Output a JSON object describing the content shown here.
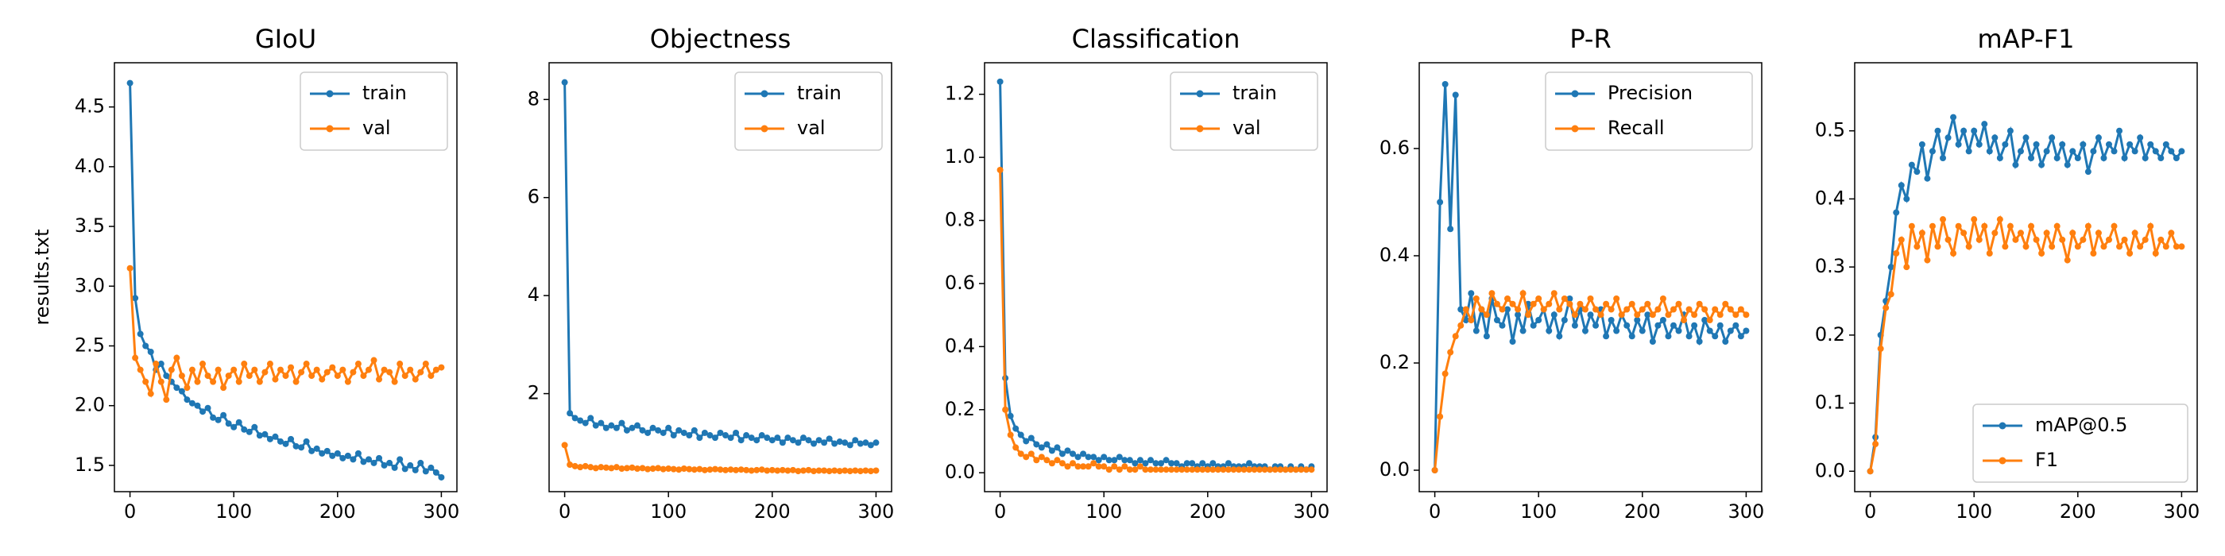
{
  "chart_data": [
    {
      "type": "line",
      "title": "GIoU",
      "y_label": "results.txt",
      "legend": "upper right",
      "x": [
        0,
        5,
        10,
        15,
        20,
        25,
        30,
        35,
        40,
        45,
        50,
        55,
        60,
        65,
        70,
        75,
        80,
        85,
        90,
        95,
        100,
        105,
        110,
        115,
        120,
        125,
        130,
        135,
        140,
        145,
        150,
        155,
        160,
        165,
        170,
        175,
        180,
        185,
        190,
        195,
        200,
        205,
        210,
        215,
        220,
        225,
        230,
        235,
        240,
        245,
        250,
        255,
        260,
        265,
        270,
        275,
        280,
        285,
        290,
        295,
        300
      ],
      "xlim": [
        -15,
        315
      ],
      "xticks": [
        0,
        100,
        200,
        300
      ],
      "ylim": [
        1.28,
        4.87
      ],
      "yticks": [
        1.5,
        {
          "value": 2.0,
          "label": "2.0"
        },
        2.5,
        {
          "value": 3.0,
          "label": "3.0"
        },
        3.5,
        {
          "value": 4.0,
          "label": "4.0"
        },
        4.5
      ],
      "series": [
        {
          "name": "train",
          "color": "#1f77b4",
          "values": [
            4.7,
            2.9,
            2.6,
            2.5,
            2.45,
            2.3,
            2.35,
            2.25,
            2.2,
            2.15,
            2.12,
            2.05,
            2.02,
            2.0,
            1.95,
            1.98,
            1.9,
            1.88,
            1.92,
            1.85,
            1.82,
            1.86,
            1.8,
            1.78,
            1.82,
            1.75,
            1.76,
            1.72,
            1.74,
            1.7,
            1.68,
            1.72,
            1.66,
            1.65,
            1.7,
            1.62,
            1.64,
            1.6,
            1.62,
            1.58,
            1.6,
            1.56,
            1.58,
            1.55,
            1.6,
            1.53,
            1.55,
            1.52,
            1.56,
            1.5,
            1.52,
            1.48,
            1.55,
            1.47,
            1.5,
            1.46,
            1.52,
            1.45,
            1.48,
            1.44,
            1.4
          ]
        },
        {
          "name": "val",
          "color": "#ff7f0e",
          "values": [
            3.15,
            2.4,
            2.3,
            2.2,
            2.1,
            2.35,
            2.2,
            2.05,
            2.3,
            2.4,
            2.25,
            2.15,
            2.3,
            2.2,
            2.35,
            2.25,
            2.2,
            2.3,
            2.15,
            2.25,
            2.3,
            2.2,
            2.35,
            2.25,
            2.3,
            2.2,
            2.28,
            2.35,
            2.22,
            2.3,
            2.25,
            2.32,
            2.2,
            2.28,
            2.35,
            2.25,
            2.3,
            2.22,
            2.28,
            2.32,
            2.25,
            2.3,
            2.2,
            2.28,
            2.35,
            2.25,
            2.3,
            2.38,
            2.22,
            2.3,
            2.28,
            2.2,
            2.35,
            2.25,
            2.3,
            2.22,
            2.28,
            2.35,
            2.25,
            2.3,
            2.32
          ]
        }
      ]
    },
    {
      "type": "line",
      "title": "Objectness",
      "legend": "upper right",
      "x": [
        0,
        5,
        10,
        15,
        20,
        25,
        30,
        35,
        40,
        45,
        50,
        55,
        60,
        65,
        70,
        75,
        80,
        85,
        90,
        95,
        100,
        105,
        110,
        115,
        120,
        125,
        130,
        135,
        140,
        145,
        150,
        155,
        160,
        165,
        170,
        175,
        180,
        185,
        190,
        195,
        200,
        205,
        210,
        215,
        220,
        225,
        230,
        235,
        240,
        245,
        250,
        255,
        260,
        265,
        270,
        275,
        280,
        285,
        290,
        295,
        300
      ],
      "xlim": [
        -15,
        315
      ],
      "xticks": [
        0,
        100,
        200,
        300
      ],
      "ylim": [
        0.0,
        8.75
      ],
      "yticks": [
        2,
        4,
        6,
        8
      ],
      "series": [
        {
          "name": "train",
          "color": "#1f77b4",
          "values": [
            8.35,
            1.6,
            1.5,
            1.45,
            1.4,
            1.5,
            1.35,
            1.4,
            1.3,
            1.35,
            1.3,
            1.4,
            1.25,
            1.3,
            1.35,
            1.25,
            1.2,
            1.3,
            1.25,
            1.2,
            1.3,
            1.15,
            1.25,
            1.2,
            1.15,
            1.25,
            1.1,
            1.2,
            1.15,
            1.1,
            1.2,
            1.15,
            1.1,
            1.2,
            1.05,
            1.15,
            1.1,
            1.05,
            1.15,
            1.1,
            1.05,
            1.1,
            1.0,
            1.1,
            1.05,
            1.0,
            1.1,
            1.05,
            0.98,
            1.05,
            1.0,
            1.08,
            0.98,
            1.02,
            1.0,
            0.95,
            1.05,
            0.98,
            1.0,
            0.95,
            1.0
          ]
        },
        {
          "name": "val",
          "color": "#ff7f0e",
          "values": [
            0.95,
            0.55,
            0.52,
            0.5,
            0.52,
            0.5,
            0.48,
            0.5,
            0.49,
            0.48,
            0.5,
            0.47,
            0.48,
            0.49,
            0.47,
            0.48,
            0.46,
            0.47,
            0.48,
            0.46,
            0.47,
            0.46,
            0.45,
            0.47,
            0.46,
            0.45,
            0.46,
            0.44,
            0.45,
            0.46,
            0.45,
            0.44,
            0.45,
            0.44,
            0.45,
            0.44,
            0.43,
            0.44,
            0.45,
            0.43,
            0.44,
            0.43,
            0.44,
            0.43,
            0.44,
            0.42,
            0.43,
            0.44,
            0.42,
            0.43,
            0.43,
            0.42,
            0.43,
            0.42,
            0.43,
            0.42,
            0.43,
            0.42,
            0.43,
            0.42,
            0.43
          ]
        }
      ]
    },
    {
      "type": "line",
      "title": "Classification",
      "legend": "upper right",
      "x": [
        0,
        5,
        10,
        15,
        20,
        25,
        30,
        35,
        40,
        45,
        50,
        55,
        60,
        65,
        70,
        75,
        80,
        85,
        90,
        95,
        100,
        105,
        110,
        115,
        120,
        125,
        130,
        135,
        140,
        145,
        150,
        155,
        160,
        165,
        170,
        175,
        180,
        185,
        190,
        195,
        200,
        205,
        210,
        215,
        220,
        225,
        230,
        235,
        240,
        245,
        250,
        255,
        260,
        265,
        270,
        275,
        280,
        285,
        290,
        295,
        300
      ],
      "xlim": [
        -15,
        315
      ],
      "xticks": [
        0,
        100,
        200,
        300
      ],
      "ylim": [
        -0.06,
        1.3
      ],
      "yticks": [
        {
          "value": 0.0,
          "label": "0.0"
        },
        0.2,
        0.4,
        0.6,
        0.8,
        {
          "value": 1.0,
          "label": "1.0"
        },
        1.2
      ],
      "series": [
        {
          "name": "train",
          "color": "#1f77b4",
          "values": [
            1.24,
            0.3,
            0.18,
            0.14,
            0.12,
            0.1,
            0.11,
            0.09,
            0.08,
            0.09,
            0.07,
            0.08,
            0.06,
            0.07,
            0.06,
            0.05,
            0.06,
            0.05,
            0.05,
            0.04,
            0.05,
            0.04,
            0.04,
            0.05,
            0.04,
            0.04,
            0.03,
            0.04,
            0.03,
            0.04,
            0.03,
            0.03,
            0.04,
            0.03,
            0.03,
            0.02,
            0.03,
            0.03,
            0.02,
            0.03,
            0.02,
            0.03,
            0.02,
            0.02,
            0.03,
            0.02,
            0.02,
            0.02,
            0.03,
            0.02,
            0.02,
            0.02,
            0.01,
            0.02,
            0.02,
            0.01,
            0.02,
            0.01,
            0.02,
            0.01,
            0.02
          ]
        },
        {
          "name": "val",
          "color": "#ff7f0e",
          "values": [
            0.96,
            0.2,
            0.12,
            0.08,
            0.06,
            0.05,
            0.06,
            0.04,
            0.05,
            0.04,
            0.03,
            0.04,
            0.03,
            0.02,
            0.03,
            0.02,
            0.02,
            0.02,
            0.03,
            0.02,
            0.02,
            0.01,
            0.02,
            0.01,
            0.02,
            0.01,
            0.01,
            0.02,
            0.01,
            0.01,
            0.01,
            0.01,
            0.01,
            0.01,
            0.01,
            0.01,
            0.01,
            0.01,
            0.01,
            0.01,
            0.01,
            0.01,
            0.01,
            0.01,
            0.01,
            0.01,
            0.01,
            0.01,
            0.01,
            0.01,
            0.01,
            0.01,
            0.01,
            0.01,
            0.01,
            0.01,
            0.01,
            0.01,
            0.01,
            0.01,
            0.01
          ]
        }
      ]
    },
    {
      "type": "line",
      "title": "P-R",
      "legend": "upper right",
      "x": [
        0,
        5,
        10,
        15,
        20,
        25,
        30,
        35,
        40,
        45,
        50,
        55,
        60,
        65,
        70,
        75,
        80,
        85,
        90,
        95,
        100,
        105,
        110,
        115,
        120,
        125,
        130,
        135,
        140,
        145,
        150,
        155,
        160,
        165,
        170,
        175,
        180,
        185,
        190,
        195,
        200,
        205,
        210,
        215,
        220,
        225,
        230,
        235,
        240,
        245,
        250,
        255,
        260,
        265,
        270,
        275,
        280,
        285,
        290,
        295,
        300
      ],
      "xlim": [
        -15,
        315
      ],
      "xticks": [
        0,
        100,
        200,
        300
      ],
      "ylim": [
        -0.04,
        0.76
      ],
      "yticks": [
        {
          "value": 0.0,
          "label": "0.0"
        },
        0.2,
        0.4,
        0.6
      ],
      "series": [
        {
          "name": "Precision",
          "color": "#1f77b4",
          "values": [
            0.0,
            0.5,
            0.72,
            0.45,
            0.7,
            0.3,
            0.28,
            0.33,
            0.26,
            0.3,
            0.25,
            0.32,
            0.28,
            0.27,
            0.3,
            0.24,
            0.29,
            0.26,
            0.31,
            0.27,
            0.28,
            0.3,
            0.26,
            0.29,
            0.25,
            0.28,
            0.32,
            0.27,
            0.3,
            0.26,
            0.29,
            0.27,
            0.3,
            0.25,
            0.28,
            0.26,
            0.29,
            0.27,
            0.25,
            0.28,
            0.26,
            0.29,
            0.24,
            0.27,
            0.28,
            0.25,
            0.27,
            0.26,
            0.29,
            0.25,
            0.27,
            0.24,
            0.28,
            0.26,
            0.25,
            0.27,
            0.24,
            0.26,
            0.27,
            0.25,
            0.26
          ]
        },
        {
          "name": "Recall",
          "color": "#ff7f0e",
          "values": [
            0.0,
            0.1,
            0.18,
            0.22,
            0.25,
            0.27,
            0.3,
            0.28,
            0.32,
            0.3,
            0.29,
            0.33,
            0.31,
            0.3,
            0.32,
            0.31,
            0.3,
            0.33,
            0.29,
            0.31,
            0.32,
            0.3,
            0.31,
            0.33,
            0.3,
            0.32,
            0.31,
            0.29,
            0.31,
            0.3,
            0.32,
            0.3,
            0.29,
            0.31,
            0.3,
            0.32,
            0.29,
            0.3,
            0.31,
            0.29,
            0.3,
            0.31,
            0.29,
            0.3,
            0.32,
            0.29,
            0.3,
            0.31,
            0.28,
            0.3,
            0.29,
            0.31,
            0.3,
            0.28,
            0.3,
            0.29,
            0.31,
            0.3,
            0.29,
            0.3,
            0.29
          ]
        }
      ]
    },
    {
      "type": "line",
      "title": "mAP-F1",
      "legend": "lower right",
      "x": [
        0,
        5,
        10,
        15,
        20,
        25,
        30,
        35,
        40,
        45,
        50,
        55,
        60,
        65,
        70,
        75,
        80,
        85,
        90,
        95,
        100,
        105,
        110,
        115,
        120,
        125,
        130,
        135,
        140,
        145,
        150,
        155,
        160,
        165,
        170,
        175,
        180,
        185,
        190,
        195,
        200,
        205,
        210,
        215,
        220,
        225,
        230,
        235,
        240,
        245,
        250,
        255,
        260,
        265,
        270,
        275,
        280,
        285,
        290,
        295,
        300
      ],
      "xlim": [
        -15,
        315
      ],
      "xticks": [
        0,
        100,
        200,
        300
      ],
      "ylim": [
        -0.03,
        0.6
      ],
      "yticks": [
        {
          "value": 0.0,
          "label": "0.0"
        },
        0.1,
        0.2,
        0.3,
        0.4,
        0.5
      ],
      "series": [
        {
          "name": "mAP@0.5",
          "color": "#1f77b4",
          "values": [
            0.0,
            0.05,
            0.2,
            0.25,
            0.3,
            0.38,
            0.42,
            0.4,
            0.45,
            0.44,
            0.48,
            0.43,
            0.47,
            0.5,
            0.46,
            0.49,
            0.52,
            0.48,
            0.5,
            0.47,
            0.5,
            0.48,
            0.51,
            0.47,
            0.49,
            0.46,
            0.48,
            0.5,
            0.45,
            0.47,
            0.49,
            0.46,
            0.48,
            0.45,
            0.47,
            0.49,
            0.46,
            0.48,
            0.45,
            0.47,
            0.46,
            0.48,
            0.44,
            0.47,
            0.49,
            0.46,
            0.48,
            0.47,
            0.5,
            0.46,
            0.48,
            0.47,
            0.49,
            0.46,
            0.48,
            0.47,
            0.46,
            0.48,
            0.47,
            0.46,
            0.47
          ]
        },
        {
          "name": "F1",
          "color": "#ff7f0e",
          "values": [
            0.0,
            0.04,
            0.18,
            0.24,
            0.26,
            0.32,
            0.34,
            0.3,
            0.36,
            0.33,
            0.35,
            0.31,
            0.36,
            0.33,
            0.37,
            0.34,
            0.32,
            0.36,
            0.35,
            0.33,
            0.37,
            0.34,
            0.36,
            0.32,
            0.35,
            0.37,
            0.33,
            0.36,
            0.34,
            0.35,
            0.33,
            0.36,
            0.34,
            0.32,
            0.35,
            0.33,
            0.36,
            0.34,
            0.31,
            0.35,
            0.33,
            0.34,
            0.36,
            0.32,
            0.35,
            0.33,
            0.34,
            0.36,
            0.33,
            0.34,
            0.32,
            0.35,
            0.33,
            0.34,
            0.36,
            0.32,
            0.34,
            0.33,
            0.35,
            0.33,
            0.33
          ]
        }
      ]
    }
  ]
}
